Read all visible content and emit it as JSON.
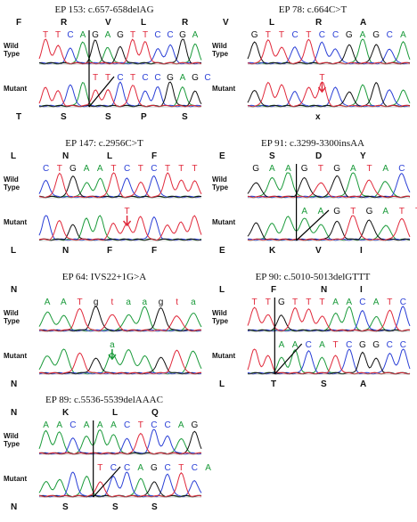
{
  "colors": {
    "A": "#1a9a3a",
    "C": "#2a3fd6",
    "G": "#111111",
    "T": "#e0283a",
    "ins": "#1a9a3a",
    "label": "#111111",
    "arrow_red": "#e0283a",
    "arrow_green": "#1a9a3a"
  },
  "panels": [
    {
      "title": "EP 153: c.657-658delAG",
      "aa_wt": [
        {
          "t": "F",
          "x": 10
        },
        {
          "t": "R",
          "x": 60
        },
        {
          "t": "V",
          "x": 110
        },
        {
          "t": "L",
          "x": 150
        },
        {
          "t": "R",
          "x": 196
        }
      ],
      "wt_bases": [
        "T",
        "T",
        "C",
        "A",
        "G",
        "A",
        "G",
        "T",
        "T",
        "C",
        "C",
        "G",
        "A"
      ],
      "mut_bases": [
        "T",
        "T",
        "C",
        "T",
        "C",
        "C",
        "G",
        "A",
        "G",
        "C"
      ],
      "mut_base_offset": 4,
      "aa_mut": [
        {
          "t": "T",
          "x": 10
        },
        {
          "t": "S",
          "x": 60
        },
        {
          "t": "S",
          "x": 110
        },
        {
          "t": "P",
          "x": 150
        },
        {
          "t": "S",
          "x": 196
        }
      ],
      "marker": "shift"
    },
    {
      "title": "EP 78: c.664C>T",
      "aa_wt": [
        {
          "t": "V",
          "x": 8
        },
        {
          "t": "L",
          "x": 60
        },
        {
          "t": "R",
          "x": 112
        },
        {
          "t": "A",
          "x": 162
        }
      ],
      "wt_bases": [
        "G",
        "T",
        "T",
        "C",
        "T",
        "C",
        "C",
        "G",
        "A",
        "G",
        "C",
        "A"
      ],
      "mut_bases": [
        "T"
      ],
      "mut_base_offset": 5,
      "aa_mut": [
        {
          "t": "x",
          "x": 112
        }
      ],
      "marker": "point-red"
    },
    {
      "title": "EP 147: c.2956C>T",
      "aa_wt": [
        {
          "t": "L",
          "x": 4
        },
        {
          "t": "N",
          "x": 62
        },
        {
          "t": "L",
          "x": 112
        },
        {
          "t": "F",
          "x": 162
        }
      ],
      "wt_bases": [
        "C",
        "T",
        "G",
        "A",
        "A",
        "T",
        "C",
        "T",
        "C",
        "T",
        "T",
        "T"
      ],
      "mut_bases": [
        "T"
      ],
      "mut_base_offset": 6,
      "aa_mut": [
        {
          "t": "L",
          "x": 4
        },
        {
          "t": "N",
          "x": 62
        },
        {
          "t": "F",
          "x": 112
        },
        {
          "t": "F",
          "x": 162
        }
      ],
      "marker": "point-red"
    },
    {
      "title": "EP 91: c.3299-3300insAA",
      "aa_wt": [
        {
          "t": "E",
          "x": 4
        },
        {
          "t": "S",
          "x": 60
        },
        {
          "t": "D",
          "x": 112
        },
        {
          "t": "Y",
          "x": 162
        }
      ],
      "wt_bases": [
        "G",
        "A",
        "A",
        "G",
        "T",
        "G",
        "A",
        "T",
        "A",
        "C"
      ],
      "mut_bases": [
        "A",
        "A",
        "G",
        "T",
        "G",
        "A",
        "T",
        "T"
      ],
      "mut_base_offset": 3,
      "aa_mut": [
        {
          "t": "E",
          "x": 4
        },
        {
          "t": "K",
          "x": 60
        },
        {
          "t": "V",
          "x": 112
        },
        {
          "t": "I",
          "x": 162
        }
      ],
      "marker": "shift"
    },
    {
      "title": "EP 64: IVS22+1G>A",
      "aa_wt": [
        {
          "t": "N",
          "x": 4
        }
      ],
      "wt_bases": [
        "A",
        "A",
        "T",
        "g",
        "t",
        "a",
        "a",
        "g",
        "t",
        "a"
      ],
      "mut_bases": [
        "a"
      ],
      "mut_base_offset": 4,
      "aa_mut": [
        {
          "t": "N",
          "x": 4
        }
      ],
      "marker": "point-green"
    },
    {
      "title": "EP 90: c.5010-5013delGTTT",
      "aa_wt": [
        {
          "t": "L",
          "x": 4
        },
        {
          "t": "F",
          "x": 62
        },
        {
          "t": "N",
          "x": 118
        },
        {
          "t": "I",
          "x": 162
        }
      ],
      "wt_bases": [
        "T",
        "T",
        "G",
        "T",
        "T",
        "T",
        "A",
        "A",
        "C",
        "A",
        "T",
        "C"
      ],
      "mut_bases": [
        "A",
        "A",
        "C",
        "A",
        "T",
        "C",
        "G",
        "G",
        "C",
        "C"
      ],
      "mut_base_offset": 2,
      "aa_mut": [
        {
          "t": "L",
          "x": 4
        },
        {
          "t": "T",
          "x": 62
        },
        {
          "t": "S",
          "x": 118
        },
        {
          "t": "A",
          "x": 162
        }
      ],
      "marker": "shift"
    },
    {
      "title": "EP 89: c.5536-5539delAAAC",
      "aa_wt": [
        {
          "t": "N",
          "x": 4
        },
        {
          "t": "K",
          "x": 62
        },
        {
          "t": "L",
          "x": 118
        },
        {
          "t": "Q",
          "x": 162
        }
      ],
      "wt_bases": [
        "A",
        "A",
        "C",
        "A",
        "A",
        "A",
        "C",
        "T",
        "C",
        "C",
        "A",
        "G"
      ],
      "mut_bases": [
        "T",
        "C",
        "C",
        "A",
        "G",
        "C",
        "T",
        "C",
        "A"
      ],
      "mut_base_offset": 4,
      "aa_mut": [
        {
          "t": "N",
          "x": 4
        },
        {
          "t": "S",
          "x": 62
        },
        {
          "t": "S",
          "x": 118
        },
        {
          "t": "S",
          "x": 162
        }
      ],
      "marker": "shift"
    }
  ],
  "row_labels": {
    "wild": "Wild\nType",
    "mutant": "Mutant"
  }
}
